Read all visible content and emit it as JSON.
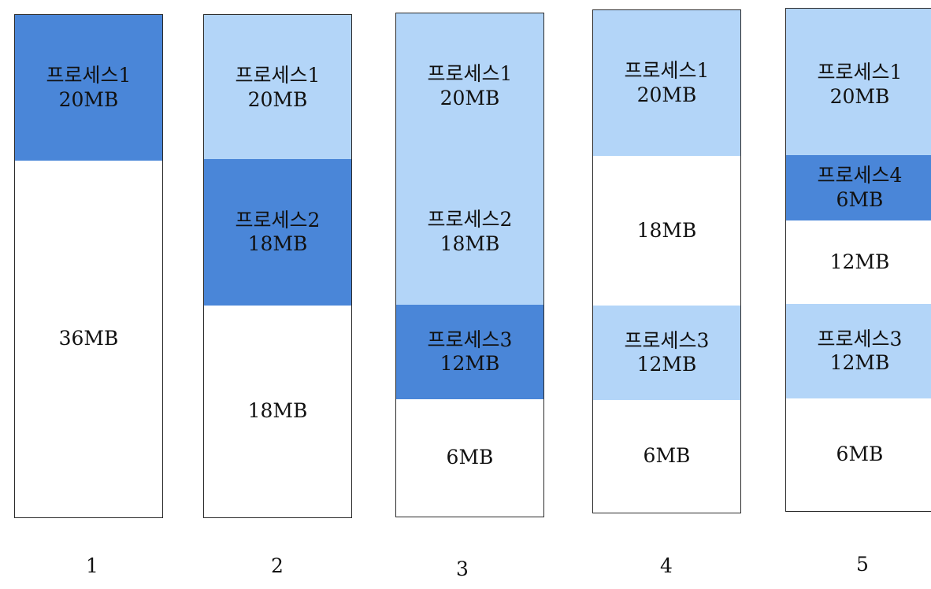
{
  "colors": {
    "new": "#4a86d8",
    "existing": "#b3d5f8",
    "free": "#ffffff",
    "border": "#2b2b2b"
  },
  "steps": [
    {
      "label": "1",
      "blocks": [
        {
          "name": "프로세스1",
          "size": "20MB",
          "type": "new"
        },
        {
          "name": "",
          "size": "36MB",
          "type": "free"
        }
      ]
    },
    {
      "label": "2",
      "blocks": [
        {
          "name": "프로세스1",
          "size": "20MB",
          "type": "existing"
        },
        {
          "name": "프로세스2",
          "size": "18MB",
          "type": "new"
        },
        {
          "name": "",
          "size": "18MB",
          "type": "free"
        }
      ]
    },
    {
      "label": "3",
      "blocks": [
        {
          "name": "프로세스1",
          "size": "20MB",
          "type": "existing"
        },
        {
          "name": "프로세스2",
          "size": "18MB",
          "type": "existing"
        },
        {
          "name": "프로세스3",
          "size": "12MB",
          "type": "new"
        },
        {
          "name": "",
          "size": "6MB",
          "type": "free"
        }
      ]
    },
    {
      "label": "4",
      "blocks": [
        {
          "name": "프로세스1",
          "size": "20MB",
          "type": "existing"
        },
        {
          "name": "",
          "size": "18MB",
          "type": "free"
        },
        {
          "name": "프로세스3",
          "size": "12MB",
          "type": "existing"
        },
        {
          "name": "",
          "size": "6MB",
          "type": "free"
        }
      ]
    },
    {
      "label": "5",
      "blocks": [
        {
          "name": "프로세스1",
          "size": "20MB",
          "type": "existing"
        },
        {
          "name": "프로세스4",
          "size": "6MB",
          "type": "new"
        },
        {
          "name": "",
          "size": "12MB",
          "type": "free"
        },
        {
          "name": "프로세스3",
          "size": "12MB",
          "type": "existing"
        },
        {
          "name": "",
          "size": "6MB",
          "type": "free"
        }
      ]
    }
  ]
}
